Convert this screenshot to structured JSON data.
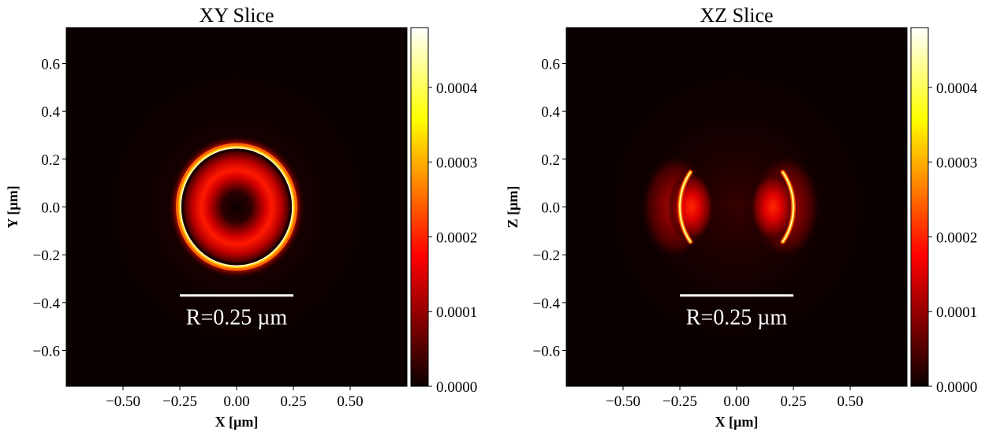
{
  "chart_data": [
    {
      "type": "heatmap",
      "title": "XY Slice",
      "xlabel": "X [µm]",
      "ylabel": "Y [µm]",
      "xlim": [
        -0.75,
        0.75
      ],
      "ylim": [
        -0.75,
        0.75
      ],
      "xticks": [
        -0.5,
        -0.25,
        0.0,
        0.25,
        0.5
      ],
      "xtick_labels": [
        "−0.50",
        "−0.25",
        "0.00",
        "0.25",
        "0.50"
      ],
      "yticks": [
        0.6,
        0.4,
        0.2,
        0.0,
        -0.2,
        -0.4,
        -0.6
      ],
      "ytick_labels": [
        "0.6",
        "0.4",
        "0.2",
        "0.0",
        "−0.2",
        "−0.4",
        "−0.6"
      ],
      "colormap": "hot",
      "colorbar": {
        "range": [
          0.0,
          0.00048
        ],
        "ticks": [
          0.0,
          0.0001,
          0.0002,
          0.0003,
          0.0004
        ],
        "tick_labels": [
          "0.0000",
          "0.0001",
          "0.0002",
          "0.0003",
          "0.0004"
        ]
      },
      "pattern": "annulus",
      "radius": 0.25,
      "peak_value": 0.00048,
      "annotation": {
        "text": "R=0.25 µm",
        "bar_x": [
          -0.25,
          0.25
        ],
        "bar_y": -0.37
      }
    },
    {
      "type": "heatmap",
      "title": "XZ Slice",
      "xlabel": "X [µm]",
      "ylabel": "Z [µm]",
      "xlim": [
        -0.75,
        0.75
      ],
      "ylim": [
        -0.75,
        0.75
      ],
      "xticks": [
        -0.5,
        -0.25,
        0.0,
        0.25,
        0.5
      ],
      "xtick_labels": [
        "−0.50",
        "−0.25",
        "0.00",
        "0.25",
        "0.50"
      ],
      "yticks": [
        0.6,
        0.4,
        0.2,
        0.0,
        -0.2,
        -0.4,
        -0.6
      ],
      "ytick_labels": [
        "0.6",
        "0.4",
        "0.2",
        "0.0",
        "−0.2",
        "−0.4",
        "−0.6"
      ],
      "colormap": "hot",
      "colorbar": {
        "range": [
          0.0,
          0.00048
        ],
        "ticks": [
          0.0,
          0.0001,
          0.0002,
          0.0003,
          0.0004
        ],
        "tick_labels": [
          "0.0000",
          "0.0001",
          "0.0002",
          "0.0003",
          "0.0004"
        ]
      },
      "pattern": "two-lobes",
      "radius": 0.25,
      "lobe_centers_x": [
        -0.2,
        0.16
      ],
      "peak_value": 0.00048,
      "annotation": {
        "text": "R=0.25 µm",
        "bar_x": [
          -0.25,
          0.25
        ],
        "bar_y": -0.37
      }
    }
  ]
}
